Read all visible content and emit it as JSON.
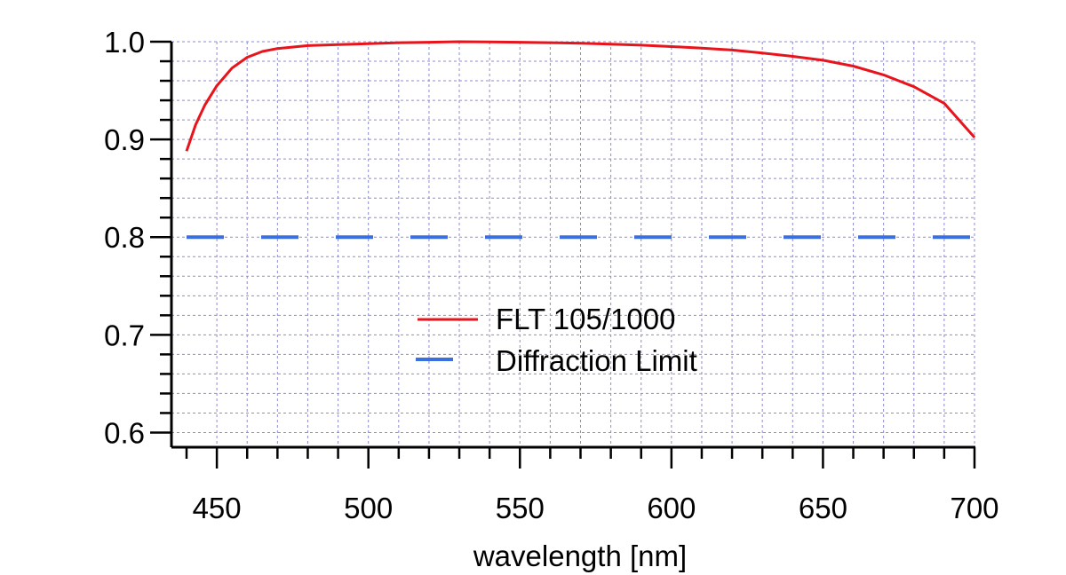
{
  "chart_data": {
    "type": "line",
    "title": "",
    "xlabel": "wavelength [nm]",
    "ylabel": "",
    "xlim": [
      440,
      700
    ],
    "ylim": [
      0.585,
      1.0
    ],
    "x_major_ticks": [
      450,
      500,
      550,
      600,
      650,
      700
    ],
    "x_tick_labels": [
      "450",
      "500",
      "550",
      "600",
      "650",
      "700"
    ],
    "y_major_ticks": [
      0.6,
      0.7,
      0.8,
      0.9,
      1.0
    ],
    "y_tick_labels": [
      "0.6",
      "0.7",
      "0.8",
      "0.9",
      "1.0"
    ],
    "grid": true,
    "legend_position": "center",
    "series": [
      {
        "name": "FLT 105/1000",
        "color": "#e8141c",
        "style": "solid",
        "x": [
          440,
          443,
          446,
          450,
          455,
          460,
          465,
          470,
          480,
          490,
          500,
          510,
          520,
          530,
          540,
          550,
          560,
          570,
          580,
          590,
          600,
          610,
          620,
          630,
          640,
          650,
          660,
          670,
          680,
          690,
          700
        ],
        "y": [
          0.888,
          0.915,
          0.935,
          0.955,
          0.973,
          0.984,
          0.99,
          0.993,
          0.996,
          0.997,
          0.998,
          0.999,
          0.9995,
          1.0,
          0.9998,
          0.9995,
          0.999,
          0.9985,
          0.9975,
          0.9965,
          0.995,
          0.9935,
          0.9915,
          0.9885,
          0.985,
          0.981,
          0.975,
          0.966,
          0.954,
          0.937,
          0.902
        ]
      },
      {
        "name": "Diffraction Limit",
        "color": "#3a6fe0",
        "style": "dashed",
        "x": [
          440,
          700
        ],
        "y": [
          0.8,
          0.8
        ]
      }
    ]
  }
}
